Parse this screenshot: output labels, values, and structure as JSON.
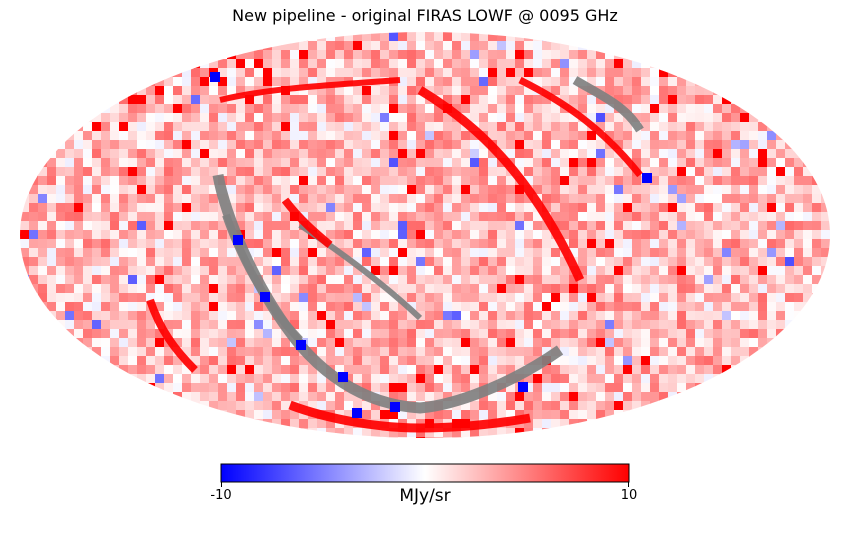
{
  "chart_data": {
    "type": "heatmap",
    "title": "New pipeline - original FIRAS LOWF @ 0095 GHz",
    "projection": "mollweide",
    "colormap": "bwr",
    "colors": {
      "low": "#0000ff",
      "mid": "#ffffff",
      "high": "#ff0000",
      "masked": "#808080"
    },
    "colorbar": {
      "min": -10,
      "max": 10,
      "unit": "MJy/sr",
      "ticks": [
        "-10",
        "10"
      ]
    }
  }
}
